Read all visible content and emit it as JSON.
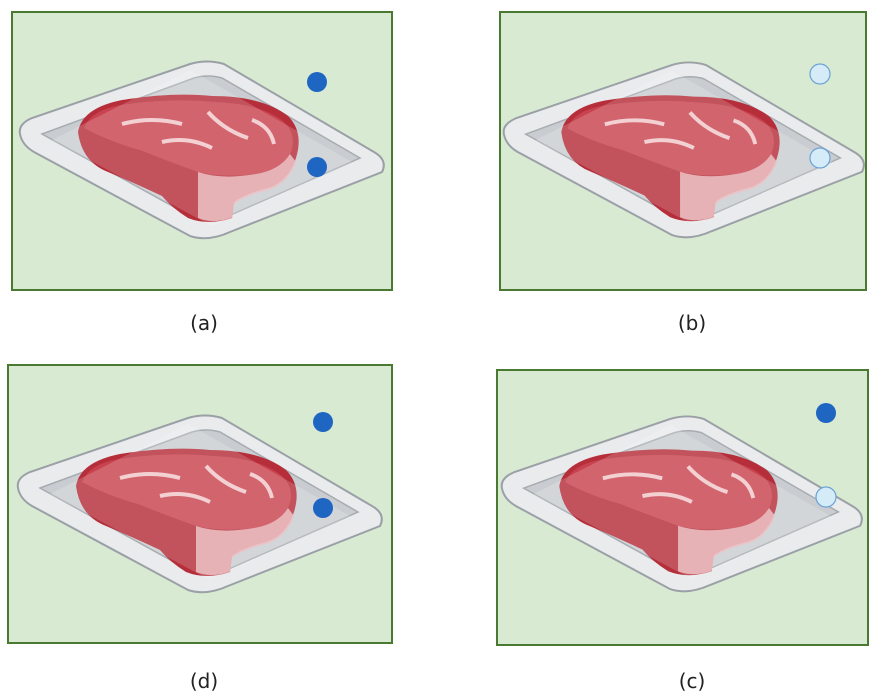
{
  "panels": [
    {
      "label": "(a)"
    },
    {
      "label": "(b)"
    },
    {
      "label": "(d)"
    },
    {
      "label": "(c)"
    }
  ]
}
